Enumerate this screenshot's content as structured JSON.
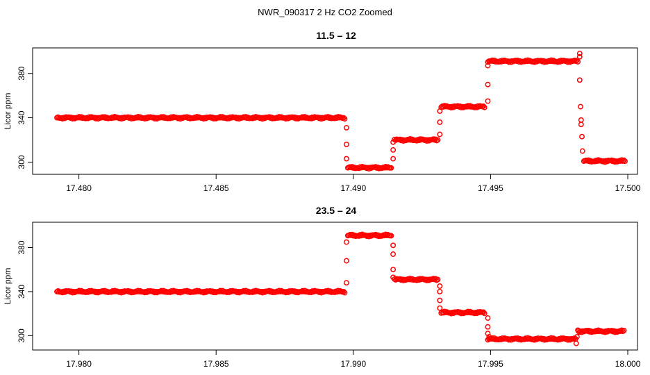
{
  "title": "NWR_090317  2 Hz CO2 Zoomed",
  "colors": {
    "points": "#ff0000",
    "axes": "#000000",
    "background": "#ffffff"
  },
  "chart_data": [
    {
      "type": "scatter",
      "title": "11.5 – 12",
      "ylabel": "Licor ppm",
      "xlabel": "",
      "xlim": [
        17.4792,
        17.5
      ],
      "ylim": [
        289,
        403
      ],
      "xticks": [
        17.48,
        17.485,
        17.49,
        17.495,
        17.5
      ],
      "xtick_labels": [
        "17.480",
        "17.485",
        "17.490",
        "17.495",
        "17.500"
      ],
      "yticks": [
        300,
        340,
        380
      ],
      "ytick_labels": [
        "300",
        "340",
        "380"
      ],
      "marker": "open-circle",
      "segments": [
        {
          "x_start": 17.4792,
          "x_end": 17.4897,
          "y": 340
        },
        {
          "x_start": 17.4898,
          "x_end": 17.4914,
          "y": 295
        },
        {
          "x_start": 17.4915,
          "x_end": 17.4931,
          "y": 320
        },
        {
          "x_start": 17.4932,
          "x_end": 17.4948,
          "y": 350
        },
        {
          "x_start": 17.4949,
          "x_end": 17.4982,
          "y": 391
        },
        {
          "x_start": 17.4984,
          "x_end": 17.4999,
          "y": 301
        }
      ],
      "transition_points": [
        {
          "x": 17.48975,
          "y": 331
        },
        {
          "x": 17.48975,
          "y": 316
        },
        {
          "x": 17.48975,
          "y": 303
        },
        {
          "x": 17.49145,
          "y": 303
        },
        {
          "x": 17.49145,
          "y": 311
        },
        {
          "x": 17.49145,
          "y": 318
        },
        {
          "x": 17.49315,
          "y": 325
        },
        {
          "x": 17.49315,
          "y": 336
        },
        {
          "x": 17.49315,
          "y": 346
        },
        {
          "x": 17.4949,
          "y": 355
        },
        {
          "x": 17.4949,
          "y": 370
        },
        {
          "x": 17.4949,
          "y": 387
        },
        {
          "x": 17.49825,
          "y": 395
        },
        {
          "x": 17.49825,
          "y": 398
        },
        {
          "x": 17.49825,
          "y": 374
        },
        {
          "x": 17.49828,
          "y": 350
        },
        {
          "x": 17.4983,
          "y": 338
        },
        {
          "x": 17.4983,
          "y": 334
        },
        {
          "x": 17.49833,
          "y": 323
        },
        {
          "x": 17.49835,
          "y": 310
        }
      ]
    },
    {
      "type": "scatter",
      "title": "23.5 – 24",
      "ylabel": "Licor ppm",
      "xlabel": "",
      "xlim": [
        17.9792,
        18.0
      ],
      "ylim": [
        287,
        403
      ],
      "xticks": [
        17.98,
        17.985,
        17.99,
        17.995,
        18.0
      ],
      "xtick_labels": [
        "17.980",
        "17.985",
        "17.990",
        "17.995",
        "18.000"
      ],
      "yticks": [
        300,
        340,
        380
      ],
      "ytick_labels": [
        "300",
        "340",
        "380"
      ],
      "marker": "open-circle",
      "segments": [
        {
          "x_start": 17.9792,
          "x_end": 17.9897,
          "y": 340
        },
        {
          "x_start": 17.9898,
          "x_end": 17.9914,
          "y": 391
        },
        {
          "x_start": 17.9915,
          "x_end": 17.9931,
          "y": 351
        },
        {
          "x_start": 17.9932,
          "x_end": 17.9948,
          "y": 321
        },
        {
          "x_start": 17.9949,
          "x_end": 17.9981,
          "y": 297
        },
        {
          "x_start": 17.9982,
          "x_end": 17.9999,
          "y": 304
        }
      ],
      "transition_points": [
        {
          "x": 17.98975,
          "y": 348
        },
        {
          "x": 17.98975,
          "y": 368
        },
        {
          "x": 17.98975,
          "y": 385
        },
        {
          "x": 17.99145,
          "y": 382
        },
        {
          "x": 17.99145,
          "y": 374
        },
        {
          "x": 17.99145,
          "y": 360
        },
        {
          "x": 17.99145,
          "y": 353
        },
        {
          "x": 17.99315,
          "y": 345
        },
        {
          "x": 17.99315,
          "y": 340
        },
        {
          "x": 17.99315,
          "y": 332
        },
        {
          "x": 17.99315,
          "y": 325
        },
        {
          "x": 17.9949,
          "y": 316
        },
        {
          "x": 17.9949,
          "y": 308
        },
        {
          "x": 17.9949,
          "y": 302
        },
        {
          "x": 17.99495,
          "y": 299
        },
        {
          "x": 17.99812,
          "y": 293
        },
        {
          "x": 17.99815,
          "y": 299
        },
        {
          "x": 17.99818,
          "y": 305
        }
      ]
    }
  ]
}
